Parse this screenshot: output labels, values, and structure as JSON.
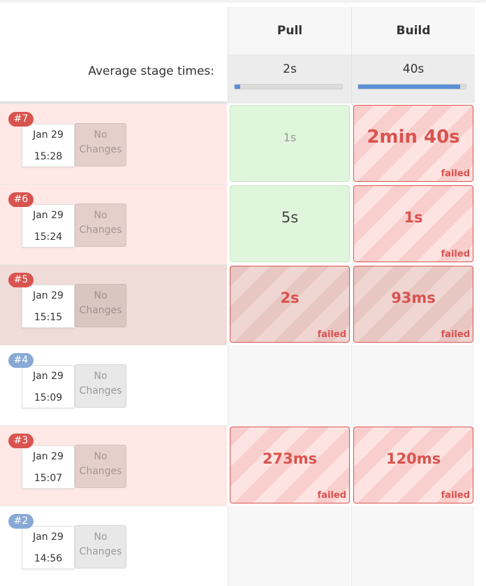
{
  "header": {
    "average_label": "Average stage times:",
    "stages": [
      {
        "name": "Pull",
        "average": "2s",
        "average_fraction": 0.05
      },
      {
        "name": "Build",
        "average": "40s",
        "average_fraction": 0.95
      }
    ]
  },
  "builds": [
    {
      "number": "#7",
      "date": "Jan 29",
      "time": "15:28",
      "changes": "No Changes",
      "result": "failed",
      "pull": {
        "value": "1s",
        "status": ""
      },
      "build": {
        "value": "2min 40s",
        "status": "failed"
      }
    },
    {
      "number": "#6",
      "date": "Jan 29",
      "time": "15:24",
      "changes": "No Changes",
      "result": "failed",
      "pull": {
        "value": "5s",
        "status": ""
      },
      "build": {
        "value": "1s",
        "status": "failed"
      }
    },
    {
      "number": "#5",
      "date": "Jan 29",
      "time": "15:15",
      "changes": "No Changes",
      "result": "failed",
      "pull": {
        "value": "2s",
        "status": "failed"
      },
      "build": {
        "value": "93ms",
        "status": "failed"
      }
    },
    {
      "number": "#4",
      "date": "Jan 29",
      "time": "15:09",
      "changes": "No Changes",
      "result": "aborted",
      "pull": {
        "value": "",
        "status": ""
      },
      "build": {
        "value": "",
        "status": ""
      }
    },
    {
      "number": "#3",
      "date": "Jan 29",
      "time": "15:07",
      "changes": "No Changes",
      "result": "failed",
      "pull": {
        "value": "273ms",
        "status": "failed"
      },
      "build": {
        "value": "120ms",
        "status": "failed"
      }
    },
    {
      "number": "#2",
      "date": "Jan 29",
      "time": "14:56",
      "changes": "No Changes",
      "result": "aborted",
      "pull": {
        "value": "",
        "status": ""
      },
      "build": {
        "value": "",
        "status": ""
      }
    }
  ],
  "colors": {
    "failed": "#d9534f",
    "success_bg": "#dff5dc",
    "badge_blue": "#87a9d4",
    "bar_fill": "#5b8fd6"
  }
}
